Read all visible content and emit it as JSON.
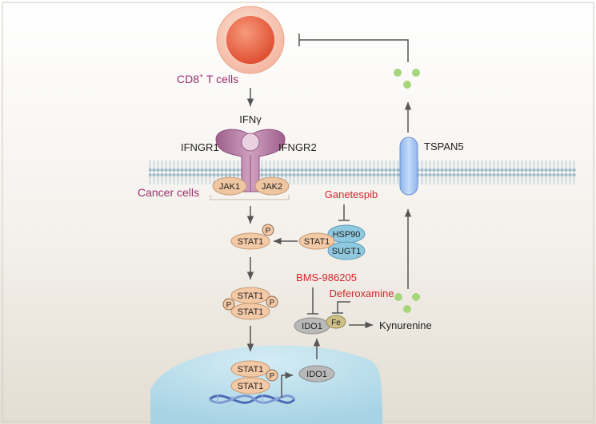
{
  "labels": {
    "cd8": "CD8",
    "cd8_sup": "+",
    "cd8_suffix": " T cells",
    "ifng": "IFNγ",
    "ifngr1": "IFNGR1",
    "ifngr2": "IFNGR2",
    "jak1": "JAK1",
    "jak2": "JAK2",
    "cancer_cells": "Cancer cells",
    "tspan5": "TSPAN5",
    "ganetespib": "Ganetespib",
    "hsp90": "HSP90",
    "sugt1": "SUGT1",
    "stat1": "STAT1",
    "p": "P",
    "bms": "BMS-986205",
    "deferoxamine": "Deferoxamine",
    "ido1": "IDO1",
    "fe": "Fe",
    "kynurenine": "Kynurenine"
  },
  "colors": {
    "drug_red": "#d5252c",
    "cell_magenta": "#9a2f6e",
    "arrow": "#4a4a4a",
    "membrane": "#9cb8c6",
    "receptor": "#b77fa6",
    "jak": "#efc6a2",
    "stat": "#f4c9a6",
    "hsp": "#8ec9e0",
    "ido": "#b9b9b9",
    "fe": "#cdbf86",
    "tspan": "#aac8f2",
    "dots": "#a6d67c",
    "nucleus": "#bfe0ec",
    "tcell_outer": "#f8c8b5",
    "tcell_inner": "#ec6b4b"
  },
  "icons": {
    "t_cell": "cell-icon",
    "dna": "dna-helix-icon",
    "kynurenine_dots": "molecule-dots-icon"
  }
}
